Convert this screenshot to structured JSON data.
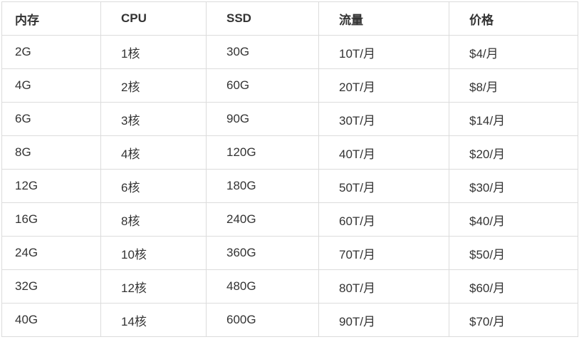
{
  "chart_data": {
    "type": "table",
    "columns": [
      "内存",
      "CPU",
      "SSD",
      "流量",
      "价格"
    ],
    "rows": [
      [
        "2G",
        "1核",
        "30G",
        "10T/月",
        "$4/月"
      ],
      [
        "4G",
        "2核",
        "60G",
        "20T/月",
        "$8/月"
      ],
      [
        "6G",
        "3核",
        "90G",
        "30T/月",
        "$14/月"
      ],
      [
        "8G",
        "4核",
        "120G",
        "40T/月",
        "$20/月"
      ],
      [
        "12G",
        "6核",
        "180G",
        "50T/月",
        "$30/月"
      ],
      [
        "16G",
        "8核",
        "240G",
        "60T/月",
        "$40/月"
      ],
      [
        "24G",
        "10核",
        "360G",
        "70T/月",
        "$50/月"
      ],
      [
        "32G",
        "12核",
        "480G",
        "80T/月",
        "$60/月"
      ],
      [
        "40G",
        "14核",
        "600G",
        "90T/月",
        "$70/月"
      ]
    ],
    "title": "",
    "layout": {
      "grid": true,
      "header_row": true
    }
  },
  "colors": {
    "border": "#dcdcdc",
    "text": "#333333",
    "background": "#ffffff"
  }
}
